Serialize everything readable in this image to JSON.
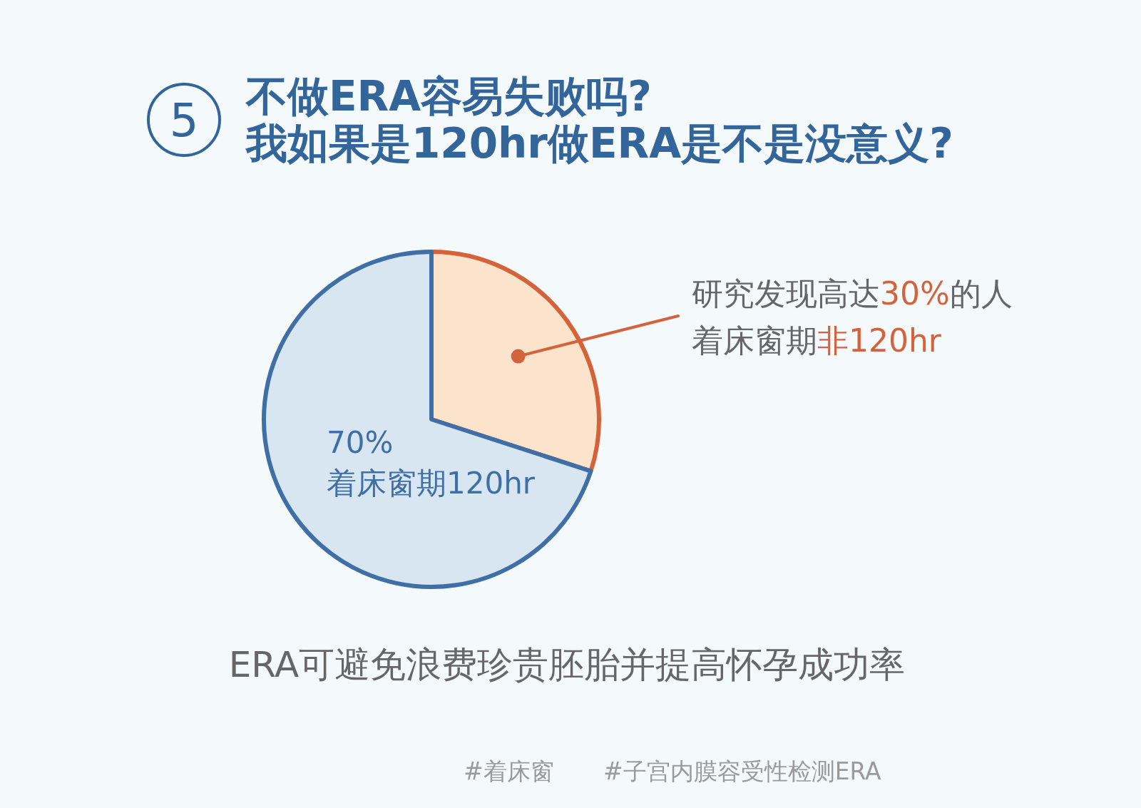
{
  "chart_data": {
    "type": "pie",
    "title": "不做ERA容易失败吗?\n我如果是120hr做ERA是不是没意义?",
    "categories": [
      "着床窗期非120hr",
      "着床窗期120hr"
    ],
    "values": [
      30,
      70
    ],
    "colors": [
      "#fbe4cb",
      "#d8e6f1"
    ],
    "value_labels": [
      "研究发现高达30%的人",
      "70%"
    ],
    "annotations": [
      "ERA可避免浪费珍贵胚胎并提高怀孕成功率",
      "5",
      "#着床窗",
      "#子宫内膜容受性检测ERA"
    ]
  }
}
